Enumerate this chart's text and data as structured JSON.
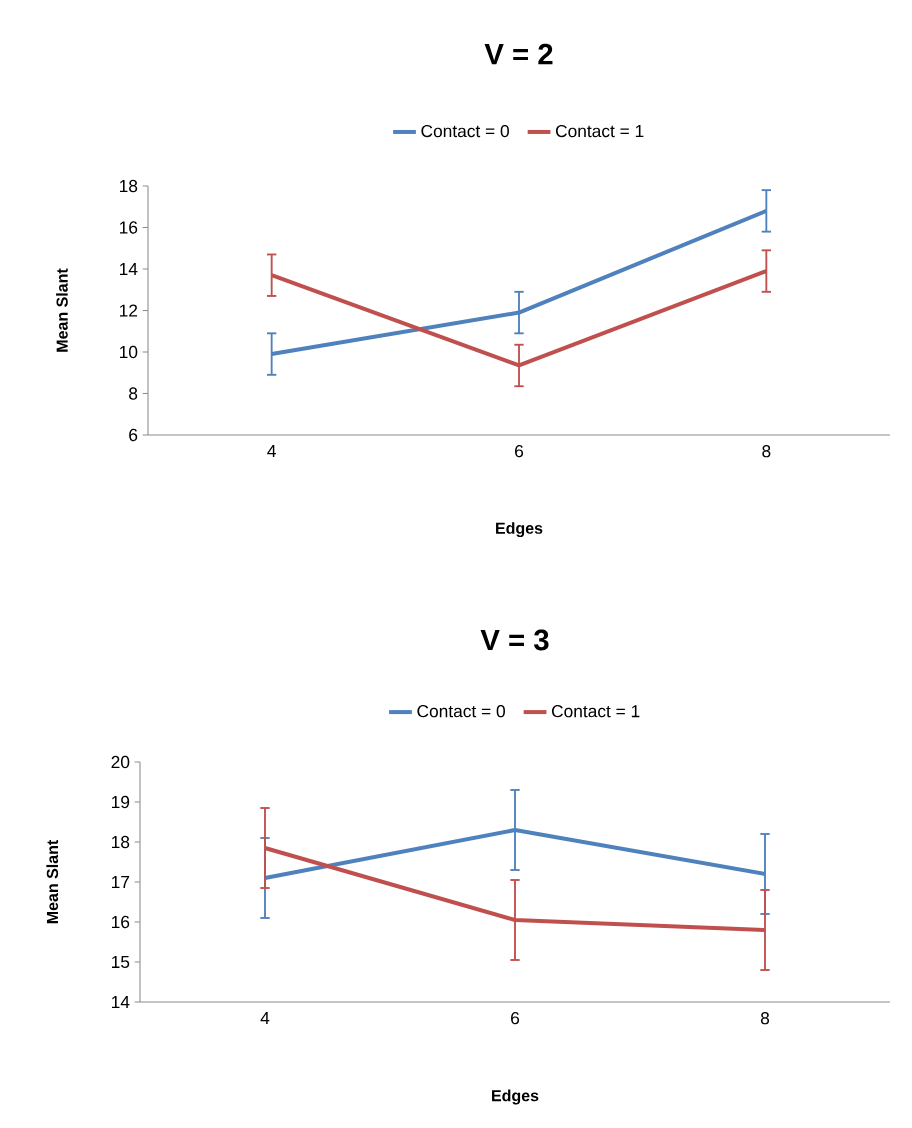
{
  "chart_data": [
    {
      "type": "line",
      "title": "V = 2",
      "xlabel": "Edges",
      "ylabel": "Mean Slant",
      "categories": [
        "4",
        "6",
        "8"
      ],
      "series": [
        {
          "name": "Contact = 0",
          "color": "#4f81bd",
          "values": [
            9.9,
            11.9,
            16.8
          ],
          "errors": [
            1,
            1,
            1
          ]
        },
        {
          "name": "Contact = 1",
          "color": "#c0504d",
          "values": [
            13.7,
            9.35,
            13.9
          ],
          "errors": [
            1,
            1,
            1
          ]
        }
      ],
      "ylim": [
        6,
        18
      ],
      "yticks": [
        6,
        8,
        10,
        12,
        14,
        16,
        18
      ],
      "legend": "top",
      "grid": false,
      "marker": "none",
      "line_style": "solid"
    },
    {
      "type": "line",
      "title": "V = 3",
      "xlabel": "Edges",
      "ylabel": "Mean Slant",
      "categories": [
        "4",
        "6",
        "8"
      ],
      "series": [
        {
          "name": "Contact = 0",
          "color": "#4f81bd",
          "values": [
            17.1,
            18.3,
            17.2
          ],
          "errors": [
            1,
            1,
            1
          ]
        },
        {
          "name": "Contact = 1",
          "color": "#c0504d",
          "values": [
            17.85,
            16.05,
            15.8
          ],
          "errors": [
            1,
            1,
            1
          ]
        }
      ],
      "ylim": [
        14,
        20
      ],
      "yticks": [
        14,
        15,
        16,
        17,
        18,
        19,
        20
      ],
      "legend": "top",
      "grid": false,
      "marker": "none",
      "line_style": "solid"
    }
  ]
}
